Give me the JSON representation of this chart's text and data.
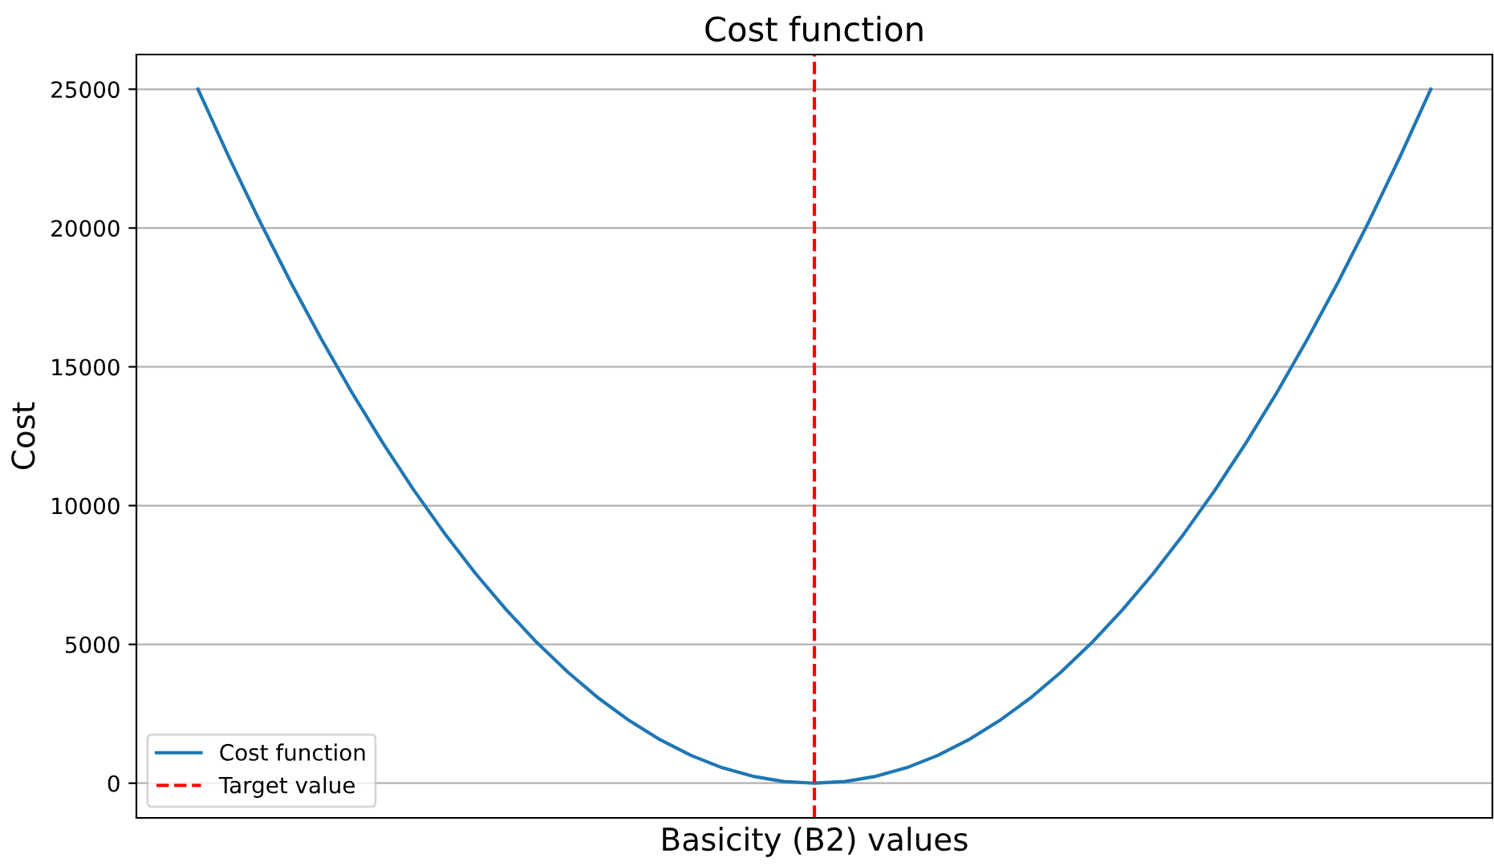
{
  "chart_data": {
    "type": "line",
    "title": "Cost function",
    "xlabel": "Basicity (B2) values",
    "ylabel": "Cost",
    "categories": [
      null,
      null,
      null,
      null,
      null,
      null,
      null,
      null,
      null,
      null,
      null,
      null,
      null,
      null,
      null,
      null,
      null,
      null,
      null,
      null,
      null,
      null,
      null,
      null,
      null,
      null,
      null,
      null,
      null,
      null,
      null,
      null,
      null,
      null,
      null,
      null,
      null,
      null,
      null,
      null,
      null
    ],
    "series": [
      {
        "name": "Cost function",
        "color": "#1f77b4",
        "values": [
          25000,
          22560,
          20250,
          18060,
          16000,
          14060,
          12250,
          10560,
          9000,
          7560,
          6250,
          5060,
          4000,
          3060,
          2250,
          1560,
          1000,
          560,
          250,
          60,
          0,
          60,
          250,
          560,
          1000,
          1560,
          2250,
          3060,
          4000,
          5060,
          6250,
          7560,
          9000,
          10560,
          12250,
          14060,
          16000,
          18060,
          20250,
          22560,
          25000
        ]
      }
    ],
    "ref_lines": [
      {
        "axis": "x",
        "label": "Target value",
        "color": "#ff0000",
        "line_style": "dashed"
      }
    ],
    "ylim": [
      -1250,
      26250
    ],
    "yticks": [
      0,
      5000,
      10000,
      15000,
      20000,
      25000
    ],
    "grid": "y",
    "legend": "bottom left",
    "tick_labels": "y"
  }
}
